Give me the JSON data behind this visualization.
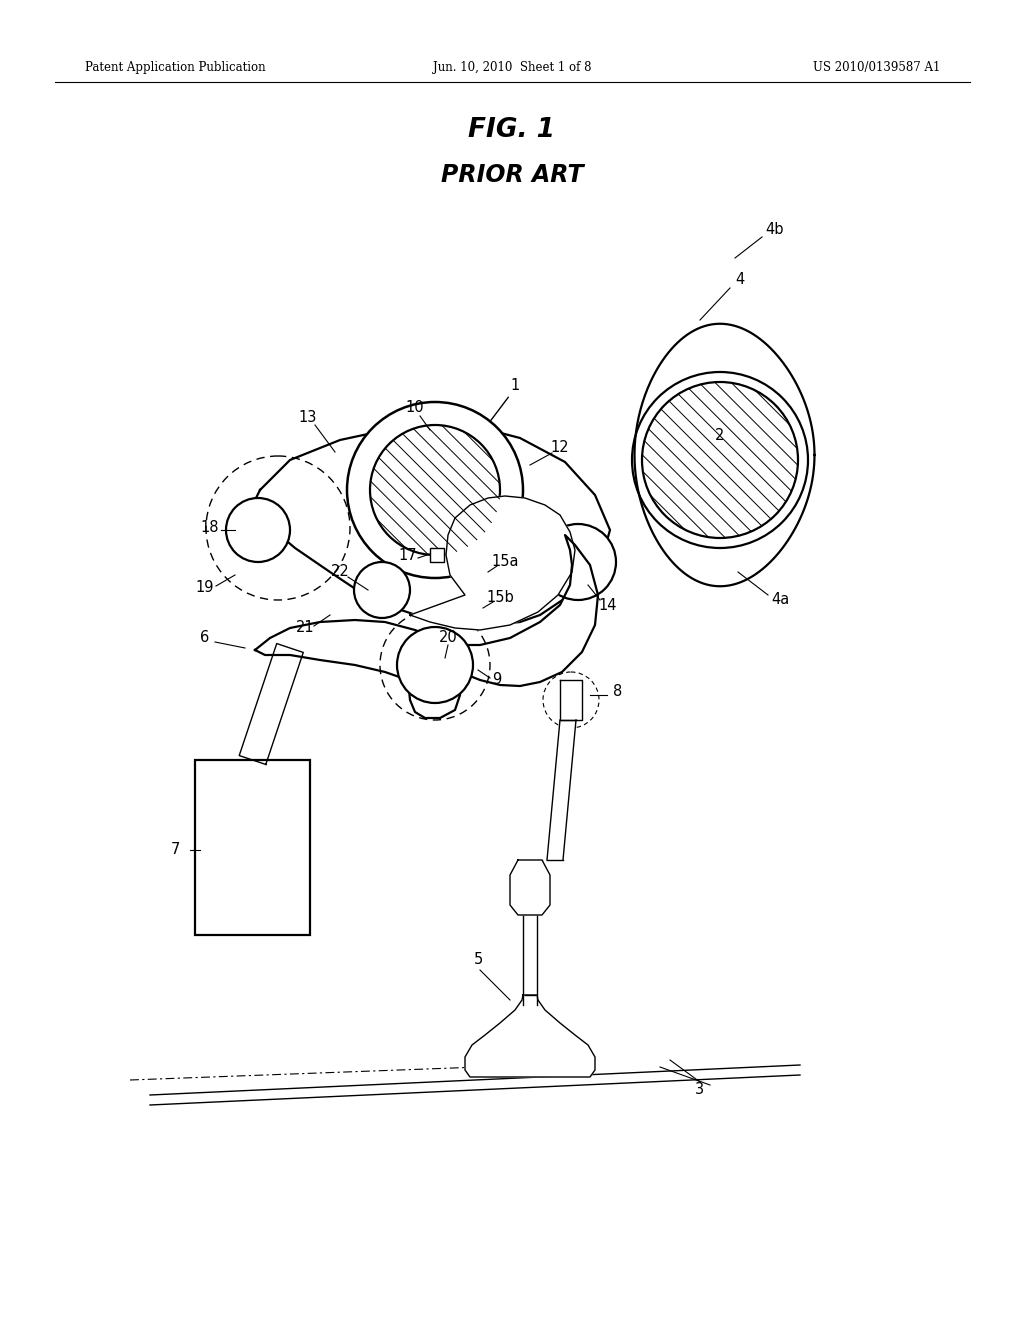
{
  "bg_color": "#ffffff",
  "header_left": "Patent Application Publication",
  "header_center": "Jun. 10, 2010  Sheet 1 of 8",
  "header_right": "US 2010/0139587 A1",
  "fig_title": "FIG. 1",
  "fig_subtitle": "PRIOR ART",
  "lw_main": 1.6,
  "lw_thin": 1.0,
  "lw_hatch": 0.7
}
